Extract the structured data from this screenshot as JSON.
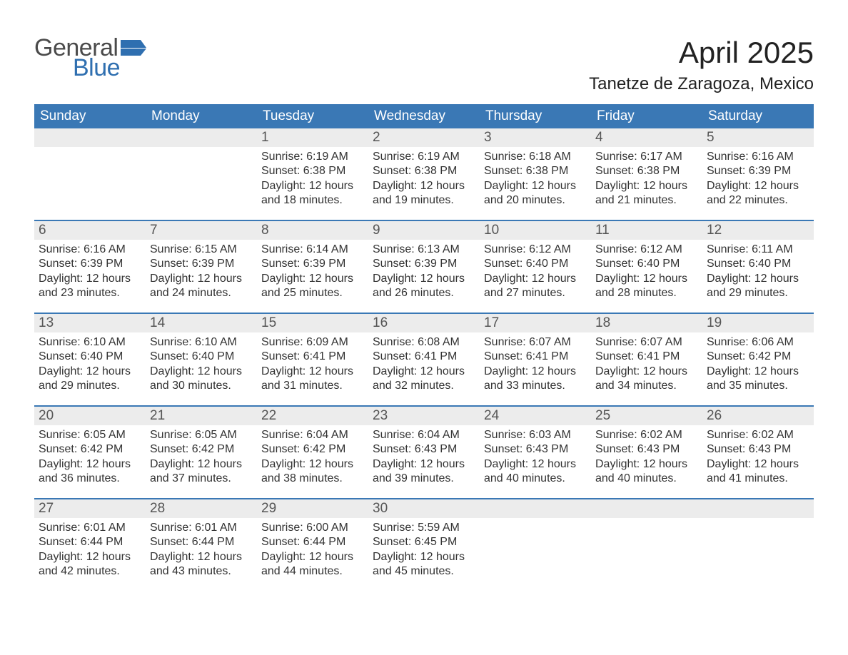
{
  "brand": {
    "word1": "General",
    "word2": "Blue",
    "word1_color": "#4a4a4a",
    "word2_color": "#2f6fb0",
    "flag_color": "#2f6fb0"
  },
  "title": "April 2025",
  "location": "Tanetze de Zaragoza, Mexico",
  "colors": {
    "header_bg": "#3a78b5",
    "header_text": "#ffffff",
    "daynum_bg": "#ececec",
    "week_divider": "#3a78b5",
    "body_text": "#333333",
    "page_bg": "#ffffff"
  },
  "typography": {
    "title_fontsize": 42,
    "location_fontsize": 24,
    "dayhead_fontsize": 19,
    "daynum_fontsize": 19,
    "body_fontsize": 16,
    "font_family": "Arial"
  },
  "day_headers": [
    "Sunday",
    "Monday",
    "Tuesday",
    "Wednesday",
    "Thursday",
    "Friday",
    "Saturday"
  ],
  "weeks": [
    [
      {
        "num": "",
        "sunrise": "",
        "sunset": "",
        "daylight": ""
      },
      {
        "num": "",
        "sunrise": "",
        "sunset": "",
        "daylight": ""
      },
      {
        "num": "1",
        "sunrise": "Sunrise: 6:19 AM",
        "sunset": "Sunset: 6:38 PM",
        "daylight": "Daylight: 12 hours and 18 minutes."
      },
      {
        "num": "2",
        "sunrise": "Sunrise: 6:19 AM",
        "sunset": "Sunset: 6:38 PM",
        "daylight": "Daylight: 12 hours and 19 minutes."
      },
      {
        "num": "3",
        "sunrise": "Sunrise: 6:18 AM",
        "sunset": "Sunset: 6:38 PM",
        "daylight": "Daylight: 12 hours and 20 minutes."
      },
      {
        "num": "4",
        "sunrise": "Sunrise: 6:17 AM",
        "sunset": "Sunset: 6:38 PM",
        "daylight": "Daylight: 12 hours and 21 minutes."
      },
      {
        "num": "5",
        "sunrise": "Sunrise: 6:16 AM",
        "sunset": "Sunset: 6:39 PM",
        "daylight": "Daylight: 12 hours and 22 minutes."
      }
    ],
    [
      {
        "num": "6",
        "sunrise": "Sunrise: 6:16 AM",
        "sunset": "Sunset: 6:39 PM",
        "daylight": "Daylight: 12 hours and 23 minutes."
      },
      {
        "num": "7",
        "sunrise": "Sunrise: 6:15 AM",
        "sunset": "Sunset: 6:39 PM",
        "daylight": "Daylight: 12 hours and 24 minutes."
      },
      {
        "num": "8",
        "sunrise": "Sunrise: 6:14 AM",
        "sunset": "Sunset: 6:39 PM",
        "daylight": "Daylight: 12 hours and 25 minutes."
      },
      {
        "num": "9",
        "sunrise": "Sunrise: 6:13 AM",
        "sunset": "Sunset: 6:39 PM",
        "daylight": "Daylight: 12 hours and 26 minutes."
      },
      {
        "num": "10",
        "sunrise": "Sunrise: 6:12 AM",
        "sunset": "Sunset: 6:40 PM",
        "daylight": "Daylight: 12 hours and 27 minutes."
      },
      {
        "num": "11",
        "sunrise": "Sunrise: 6:12 AM",
        "sunset": "Sunset: 6:40 PM",
        "daylight": "Daylight: 12 hours and 28 minutes."
      },
      {
        "num": "12",
        "sunrise": "Sunrise: 6:11 AM",
        "sunset": "Sunset: 6:40 PM",
        "daylight": "Daylight: 12 hours and 29 minutes."
      }
    ],
    [
      {
        "num": "13",
        "sunrise": "Sunrise: 6:10 AM",
        "sunset": "Sunset: 6:40 PM",
        "daylight": "Daylight: 12 hours and 29 minutes."
      },
      {
        "num": "14",
        "sunrise": "Sunrise: 6:10 AM",
        "sunset": "Sunset: 6:40 PM",
        "daylight": "Daylight: 12 hours and 30 minutes."
      },
      {
        "num": "15",
        "sunrise": "Sunrise: 6:09 AM",
        "sunset": "Sunset: 6:41 PM",
        "daylight": "Daylight: 12 hours and 31 minutes."
      },
      {
        "num": "16",
        "sunrise": "Sunrise: 6:08 AM",
        "sunset": "Sunset: 6:41 PM",
        "daylight": "Daylight: 12 hours and 32 minutes."
      },
      {
        "num": "17",
        "sunrise": "Sunrise: 6:07 AM",
        "sunset": "Sunset: 6:41 PM",
        "daylight": "Daylight: 12 hours and 33 minutes."
      },
      {
        "num": "18",
        "sunrise": "Sunrise: 6:07 AM",
        "sunset": "Sunset: 6:41 PM",
        "daylight": "Daylight: 12 hours and 34 minutes."
      },
      {
        "num": "19",
        "sunrise": "Sunrise: 6:06 AM",
        "sunset": "Sunset: 6:42 PM",
        "daylight": "Daylight: 12 hours and 35 minutes."
      }
    ],
    [
      {
        "num": "20",
        "sunrise": "Sunrise: 6:05 AM",
        "sunset": "Sunset: 6:42 PM",
        "daylight": "Daylight: 12 hours and 36 minutes."
      },
      {
        "num": "21",
        "sunrise": "Sunrise: 6:05 AM",
        "sunset": "Sunset: 6:42 PM",
        "daylight": "Daylight: 12 hours and 37 minutes."
      },
      {
        "num": "22",
        "sunrise": "Sunrise: 6:04 AM",
        "sunset": "Sunset: 6:42 PM",
        "daylight": "Daylight: 12 hours and 38 minutes."
      },
      {
        "num": "23",
        "sunrise": "Sunrise: 6:04 AM",
        "sunset": "Sunset: 6:43 PM",
        "daylight": "Daylight: 12 hours and 39 minutes."
      },
      {
        "num": "24",
        "sunrise": "Sunrise: 6:03 AM",
        "sunset": "Sunset: 6:43 PM",
        "daylight": "Daylight: 12 hours and 40 minutes."
      },
      {
        "num": "25",
        "sunrise": "Sunrise: 6:02 AM",
        "sunset": "Sunset: 6:43 PM",
        "daylight": "Daylight: 12 hours and 40 minutes."
      },
      {
        "num": "26",
        "sunrise": "Sunrise: 6:02 AM",
        "sunset": "Sunset: 6:43 PM",
        "daylight": "Daylight: 12 hours and 41 minutes."
      }
    ],
    [
      {
        "num": "27",
        "sunrise": "Sunrise: 6:01 AM",
        "sunset": "Sunset: 6:44 PM",
        "daylight": "Daylight: 12 hours and 42 minutes."
      },
      {
        "num": "28",
        "sunrise": "Sunrise: 6:01 AM",
        "sunset": "Sunset: 6:44 PM",
        "daylight": "Daylight: 12 hours and 43 minutes."
      },
      {
        "num": "29",
        "sunrise": "Sunrise: 6:00 AM",
        "sunset": "Sunset: 6:44 PM",
        "daylight": "Daylight: 12 hours and 44 minutes."
      },
      {
        "num": "30",
        "sunrise": "Sunrise: 5:59 AM",
        "sunset": "Sunset: 6:45 PM",
        "daylight": "Daylight: 12 hours and 45 minutes."
      },
      {
        "num": "",
        "sunrise": "",
        "sunset": "",
        "daylight": ""
      },
      {
        "num": "",
        "sunrise": "",
        "sunset": "",
        "daylight": ""
      },
      {
        "num": "",
        "sunrise": "",
        "sunset": "",
        "daylight": ""
      }
    ]
  ]
}
